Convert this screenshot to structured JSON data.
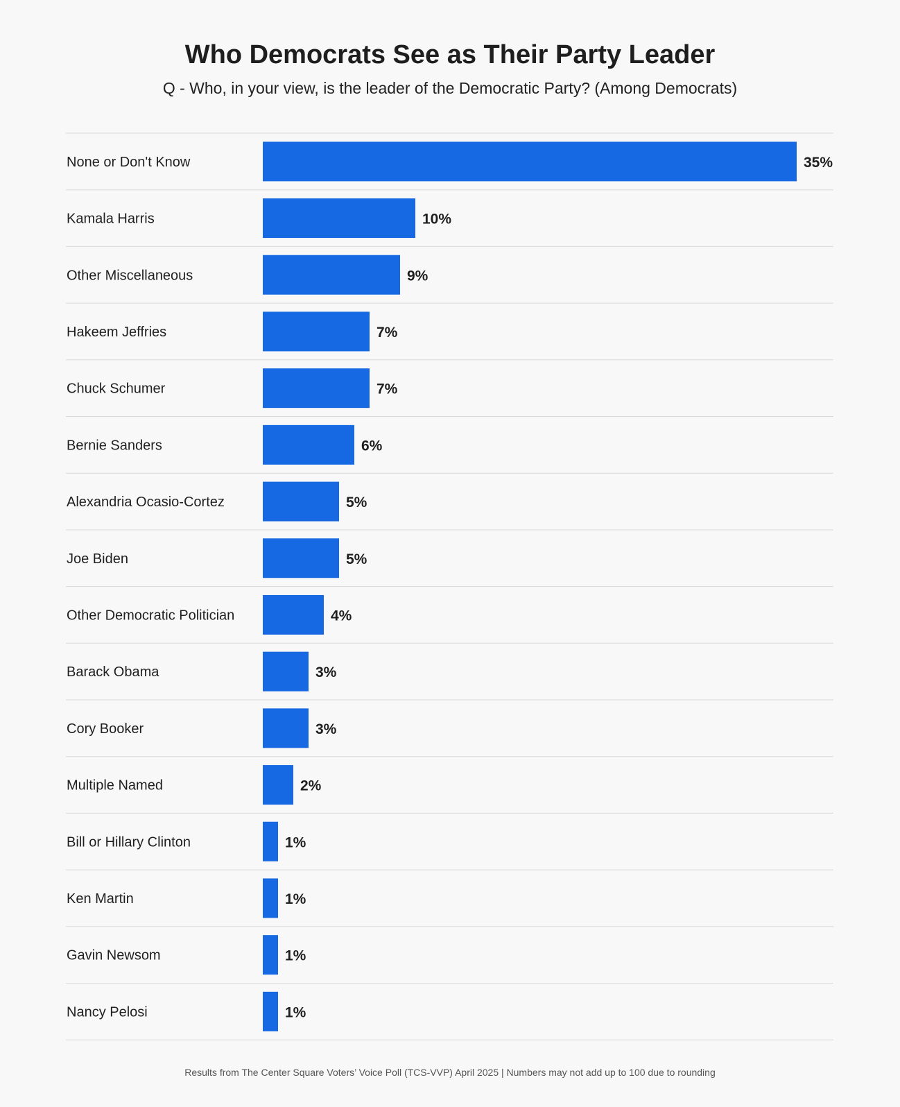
{
  "header": {
    "title": "Who Democrats See as Their Party Leader",
    "subtitle": "Q - Who, in your view, is the leader of the Democratic Party? (Among Democrats)"
  },
  "footer": {
    "note": "Results from The Center Square Voters’ Voice Poll (TCS-VVP) April 2025 | Numbers may not add up to 100 due to rounding"
  },
  "colors": {
    "bar": "#1769e3",
    "divider": "#d9d9d9",
    "background": "#f8f8f8"
  },
  "chart_data": {
    "type": "bar",
    "orientation": "horizontal",
    "title": "Who Democrats See as Their Party Leader",
    "subtitle": "Q - Who, in your view, is the leader of the Democratic Party? (Among Democrats)",
    "categories": [
      "None or Don't Know",
      "Kamala Harris",
      "Other Miscellaneous",
      "Hakeem Jeffries",
      "Chuck Schumer",
      "Bernie Sanders",
      "Alexandria Ocasio-Cortez",
      "Joe Biden",
      "Other Democratic Politician",
      "Barack Obama",
      "Cory Booker",
      "Multiple Named",
      "Bill or Hillary Clinton",
      "Ken Martin",
      "Gavin Newsom",
      "Nancy Pelosi"
    ],
    "values": [
      35,
      10,
      9,
      7,
      7,
      6,
      5,
      5,
      4,
      3,
      3,
      2,
      1,
      1,
      1,
      1
    ],
    "value_labels": [
      "35%",
      "10%",
      "9%",
      "7%",
      "7%",
      "6%",
      "5%",
      "5%",
      "4%",
      "3%",
      "3%",
      "2%",
      "1%",
      "1%",
      "1%",
      "1%"
    ],
    "unit": "%",
    "xlim": [
      0,
      35
    ],
    "grid": false,
    "legend": "none"
  }
}
